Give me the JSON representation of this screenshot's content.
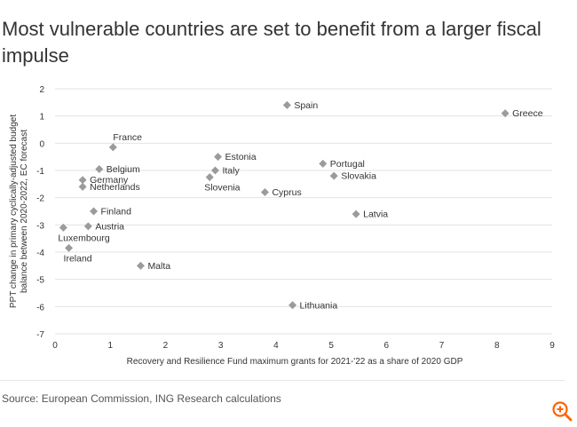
{
  "page": {
    "title": "Most vulnerable countries are set to benefit from a larger fiscal impulse",
    "source": "Source: European Commission, ING Research calculations",
    "zoom_icon": "zoom-in-icon"
  },
  "colors": {
    "marker": "#9b9b9b",
    "grid": "#e3e3e3",
    "text": "#333333",
    "zoom": "#ff6200"
  },
  "chart_data": {
    "type": "scatter",
    "title": "Most vulnerable countries are set to benefit from a larger fiscal impulse",
    "xlabel": "Recovery and Resilience Fund maximum grants for 2021-'22 as a share of 2020 GDP",
    "ylabel_lines": [
      "PPT change in primary cyclically-adjusted budget",
      "balance between 2020-2022, EC forecast"
    ],
    "xlim": [
      0,
      9
    ],
    "ylim": [
      -7,
      2
    ],
    "xticks": [
      0,
      1,
      2,
      3,
      4,
      5,
      6,
      7,
      8,
      9
    ],
    "yticks": [
      2,
      1,
      0,
      -1,
      -2,
      -3,
      -4,
      -5,
      -6,
      -7
    ],
    "grid": "horizontal",
    "points": [
      {
        "label": "France",
        "x": 1.05,
        "y": -0.15,
        "anchor": "above"
      },
      {
        "label": "Belgium",
        "x": 0.8,
        "y": -0.95,
        "anchor": "right"
      },
      {
        "label": "Germany",
        "x": 0.5,
        "y": -1.35,
        "anchor": "right"
      },
      {
        "label": "Netherlands",
        "x": 0.5,
        "y": -1.6,
        "anchor": "right"
      },
      {
        "label": "Finland",
        "x": 0.7,
        "y": -2.5,
        "anchor": "right"
      },
      {
        "label": "Austria",
        "x": 0.6,
        "y": -3.05,
        "anchor": "right"
      },
      {
        "label": "Luxembourg",
        "x": 0.15,
        "y": -3.1,
        "anchor": "below"
      },
      {
        "label": "Ireland",
        "x": 0.25,
        "y": -3.85,
        "anchor": "below"
      },
      {
        "label": "Malta",
        "x": 1.55,
        "y": -4.5,
        "anchor": "right"
      },
      {
        "label": "Estonia",
        "x": 2.95,
        "y": -0.5,
        "anchor": "right"
      },
      {
        "label": "Italy",
        "x": 2.9,
        "y": -1.0,
        "anchor": "right"
      },
      {
        "label": "Slovenia",
        "x": 2.8,
        "y": -1.25,
        "anchor": "below"
      },
      {
        "label": "Cyprus",
        "x": 3.8,
        "y": -1.8,
        "anchor": "right"
      },
      {
        "label": "Spain",
        "x": 4.2,
        "y": 1.4,
        "anchor": "right"
      },
      {
        "label": "Portugal",
        "x": 4.85,
        "y": -0.75,
        "anchor": "right"
      },
      {
        "label": "Slovakia",
        "x": 5.05,
        "y": -1.2,
        "anchor": "right"
      },
      {
        "label": "Latvia",
        "x": 5.45,
        "y": -2.6,
        "anchor": "right"
      },
      {
        "label": "Lithuania",
        "x": 4.3,
        "y": -5.95,
        "anchor": "right"
      },
      {
        "label": "Greece",
        "x": 8.15,
        "y": 1.1,
        "anchor": "right"
      }
    ]
  }
}
